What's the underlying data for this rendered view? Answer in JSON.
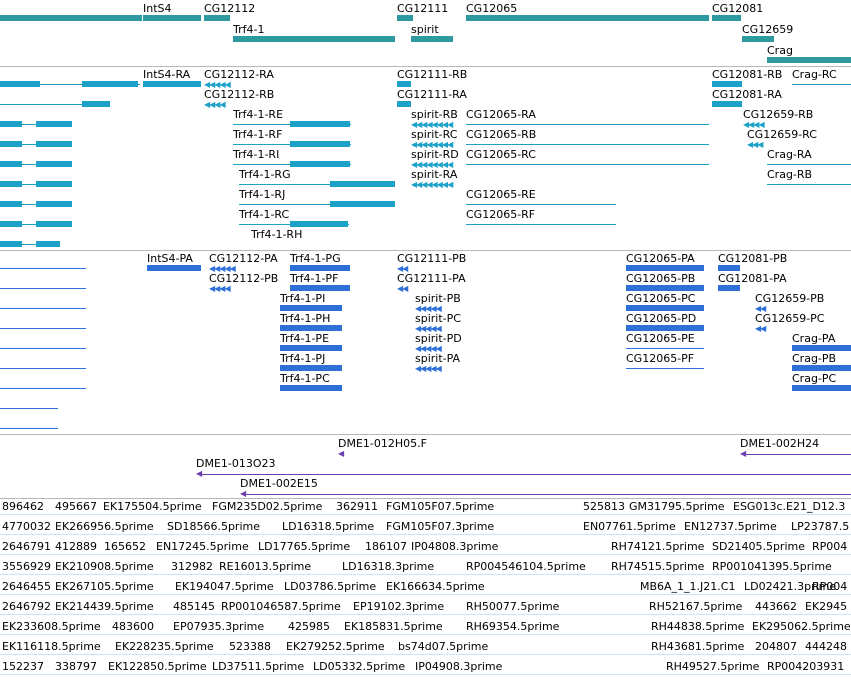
{
  "colors": {
    "gene": "#2e9aa0",
    "mrna": "#1ca2c8",
    "cds": "#2f6fd8",
    "ins": "#6b3fb0",
    "est": "#5aa6d6"
  },
  "gene_track": {
    "labels": [
      "IntS4",
      "CG12112",
      "Trf4-1",
      "CG12111",
      "spirit",
      "CG12065",
      "CG12081",
      "CG12659",
      "Crag"
    ]
  },
  "mrna_track": {
    "labels": [
      "IntS4-RA",
      "CG12112-RA",
      "CG12112-RB",
      "Trf4-1-RE",
      "Trf4-1-RF",
      "Trf4-1-RI",
      "Trf4-1-RG",
      "Trf4-1-RJ",
      "Trf4-1-RC",
      "Trf4-1-RH",
      "CG12111-RB",
      "CG12111-RA",
      "spirit-RB",
      "spirit-RC",
      "spirit-RD",
      "spirit-RA",
      "CG12065-RA",
      "CG12065-RB",
      "CG12065-RC",
      "CG12065-RE",
      "CG12065-RF",
      "CG12081-RB",
      "Crag-RC",
      "CG12081-RA",
      "CG12659-RB",
      "CG12659-RC",
      "Crag-RA",
      "Crag-RB"
    ]
  },
  "cds_track": {
    "labels": [
      "IntS4-PA",
      "CG12112-PA",
      "Trf4-1-PG",
      "CG12112-PB",
      "Trf4-1-PF",
      "Trf4-1-PI",
      "Trf4-1-PH",
      "Trf4-1-PE",
      "Trf4-1-PJ",
      "Trf4-1-PC",
      "CG12111-PB",
      "CG12111-PA",
      "spirit-PB",
      "spirit-PC",
      "spirit-PD",
      "spirit-PA",
      "CG12065-PA",
      "CG12065-PB",
      "CG12065-PC",
      "CG12065-PD",
      "CG12065-PE",
      "CG12065-PF",
      "CG12081-PB",
      "CG12081-PA",
      "CG12659-PB",
      "CG12659-PC",
      "Crag-PA",
      "Crag-PB",
      "Crag-PC"
    ]
  },
  "insertion_track": {
    "labels": [
      "DME1-012H05.F",
      "DME1-002H24",
      "DME1-013O23",
      "DME1-002E15"
    ]
  },
  "est_track": {
    "rows": [
      [
        "896462",
        "495667",
        "EK175504.5prime",
        "FGM235D02.5prime",
        "362911",
        "FGM105F07.5prime",
        "525813",
        "GM31795.5prime",
        "ESG013c.E21_D12.3"
      ],
      [
        "4770032",
        "EK266956.5prime",
        "SD18566.5prime",
        "LD16318.5prime",
        "FGM105F07.3prime",
        "EN07761.5prime",
        "EN12737.5prime",
        "LP23787.5"
      ],
      [
        "2646791",
        "412889",
        "165652",
        "EN17245.5prime",
        "LD17765.5prime",
        "186107",
        "IP04808.3prime",
        "RH74121.5prime",
        "SD21405.5prime",
        "RP004"
      ],
      [
        "3556929",
        "EK210908.5prime",
        "312982",
        "RE16013.5prime",
        "LD16318.3prime",
        "RP004546104.5prime",
        "RH74515.5prime",
        "RP001041395.5prime"
      ],
      [
        "2646455",
        "EK267105.5prime",
        "EK194047.5prime",
        "LD03786.5prime",
        "EK166634.5prime",
        "MB6A_1_1.J21.C1",
        "LD02421.3prime",
        "RP004"
      ],
      [
        "2646792",
        "EK214439.5prime",
        "485145",
        "RP001046587.5prime",
        "EP19102.3prime",
        "RH50077.5prime",
        "RH52167.5prime",
        "443662",
        "EK2945"
      ],
      [
        "EK233608.5prime",
        "483600",
        "EP07935.3prime",
        "425985",
        "EK185831.5prime",
        "RH69354.5prime",
        "RH44838.5prime",
        "EK295062.5prime"
      ],
      [
        "EK116118.5prime",
        "EK228235.5prime",
        "523388",
        "EK279252.5prime",
        "bs74d07.5prime",
        "RH43681.5prime",
        "204807",
        "444248"
      ],
      [
        "152237",
        "338797",
        "EK122850.5prime",
        "LD37511.5prime",
        "LD05332.5prime",
        "IP04908.3prime",
        "RH49527.5prime",
        "RP004203931"
      ]
    ]
  }
}
